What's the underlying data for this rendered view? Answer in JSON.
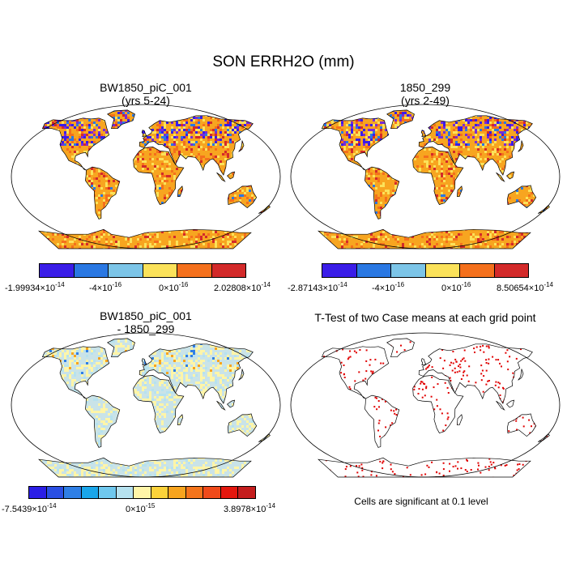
{
  "main_title": "SON ERRH2O (mm)",
  "panels": [
    {
      "title_line1": "BW1850_piC_001",
      "title_line2": "(yrs 5-24)",
      "palette": [
        "#3a1de8",
        "#2a78e3",
        "#7cc5e8",
        "#fbe25a",
        "#f4701c",
        "#d32a2a"
      ],
      "colorbar_labels": [
        {
          "mant": "-1.99934",
          "exp": "-14"
        },
        {
          "mant": "-4",
          "exp": "-16"
        },
        {
          "mant": "0",
          "exp": "-16"
        },
        {
          "mant": "2.02808",
          "exp": "-14"
        }
      ]
    },
    {
      "title_line1": "1850_299",
      "title_line2": "(yrs 2-49)",
      "palette": [
        "#3a1de8",
        "#2a78e3",
        "#7cc5e8",
        "#fbe25a",
        "#f4701c",
        "#d32a2a"
      ],
      "colorbar_labels": [
        {
          "mant": "-2.87143",
          "exp": "-14"
        },
        {
          "mant": "-4",
          "exp": "-16"
        },
        {
          "mant": "0",
          "exp": "-16"
        },
        {
          "mant": "8.50654",
          "exp": "-14"
        }
      ]
    },
    {
      "title_line1": "BW1850_piC_001",
      "title_line2": "- 1850_299",
      "palette": [
        "#2b1ee6",
        "#2a4fe4",
        "#2f7fe6",
        "#1aa6ea",
        "#6fc8ee",
        "#b6e2ef",
        "#fff5a8",
        "#fbd23a",
        "#f7a41e",
        "#f4741b",
        "#f04a1a",
        "#e4170e",
        "#c41d1d"
      ],
      "colorbar_labels": [
        {
          "mant": "-7.5439",
          "exp": "-14"
        },
        {
          "mant": "0",
          "exp": "-15"
        },
        {
          "mant": "3.8978",
          "exp": "-14"
        }
      ]
    },
    {
      "title_line1": "T-Test of two Case means at each grid point",
      "title_line2": "",
      "note": "Cells are significant at 0.1 level"
    }
  ]
}
